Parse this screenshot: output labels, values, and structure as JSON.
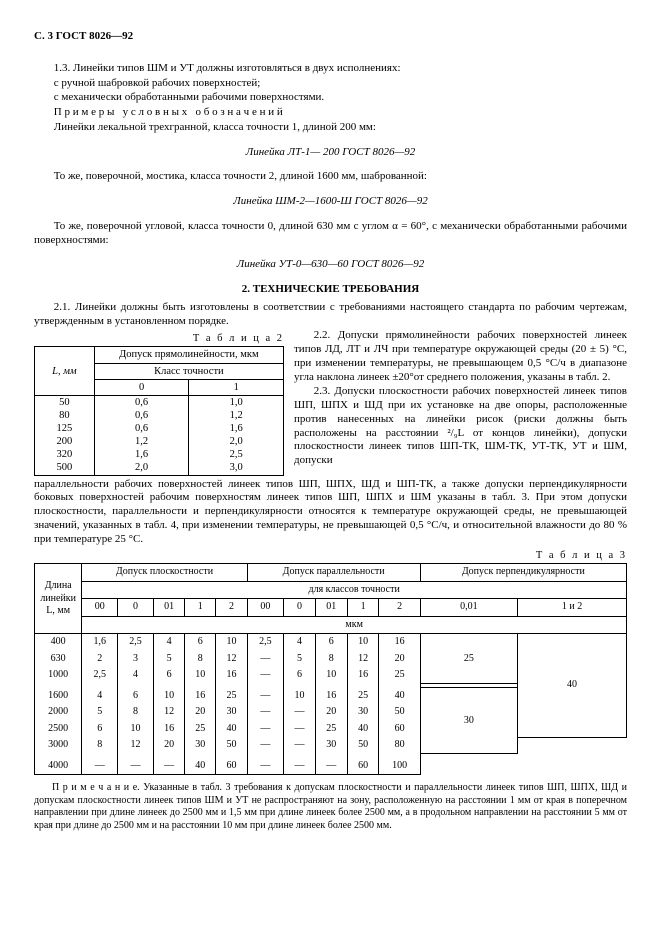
{
  "header": "С. 3  ГОСТ 8026—92",
  "p1": "1.3. Линейки типов ШМ и УТ должны изготовляться в двух исполнениях:",
  "p2": "с ручной шабровкой рабочих поверхностей;",
  "p3": "с механически обработанными рабочими поверхностями.",
  "p4a": "П р и м е р ы",
  "p4b": "у с л о в н ы х",
  "p4c": "о б о з н а ч е н и й",
  "p5": "Линейки лекальной трехгранной, класса точности 1, длиной 200 мм:",
  "f1": "Линейка ЛТ-1— 200 ГОСТ 8026—92",
  "p6": "То же, поверочной, мостика, класса точности 2, длиной 1600 мм, шаброванной:",
  "f2": "Линейка ШМ-2—1600-Ш ГОСТ 8026—92",
  "p7": "То же, поверочной угловой, класса точности 0, длиной 630 мм с углом α = 60°, с механически обработанными рабочими поверхностями:",
  "f3": "Линейка УТ-0—630—60 ГОСТ 8026—92",
  "sec2": "2.  ТЕХНИЧЕСКИЕ ТРЕБОВАНИЯ",
  "p21": "2.1. Линейки должны быть изготовлены в соответствии с требованиями настоящего стандарта по рабочим чертежам, утвержденным в установленном порядке.",
  "t2_label": "Т а б л и ц а  2",
  "t2_h1": "Допуск прямолинейности, мкм",
  "t2_h2": "Класс точности",
  "t2_L": "L, мм",
  "t2_rows": [
    {
      "L": "50",
      "c0": "0,6",
      "c1": "1,0"
    },
    {
      "L": "80",
      "c0": "0,6",
      "c1": "1,2"
    },
    {
      "L": "125",
      "c0": "0,6",
      "c1": "1,6"
    },
    {
      "L": "200",
      "c0": "1,2",
      "c1": "2,0"
    },
    {
      "L": "320",
      "c0": "1,6",
      "c1": "2,5"
    },
    {
      "L": "500",
      "c0": "2,0",
      "c1": "3,0"
    }
  ],
  "p22": "2.2. Допуски прямолинейности рабочих поверхностей линеек типов ЛД, ЛТ и ЛЧ при температуре окружающей среды (20 ± 5) °С, при изменении температуры, не превышающем 0,5 °С/ч в диапазоне угла наклона линеек ±20°от среднего положения, указаны в табл.  2.",
  "p23": "2.3. Допуски плоскостности рабочих поверхностей линеек типов ШП, ШПХ и ШД при их установке на две опоры, расположенные против нанесенных на линейки рисок (риски должны быть расположены на расстоянии ²/₉L от концов линейки), допуски плоскостности линеек типов ШП-ТК, ШМ-ТК, УТ-ТК, УТ и ШМ, допуски",
  "p23b": "параллельности рабочих поверхностей линеек типов ШП, ШПХ, ШД и ШП-ТК, а также допуски перпендикулярности боковых поверхностей рабочим поверхностям линеек типов ШП, ШПХ и ШМ указаны в табл. 3. При этом допуски плоскостности, параллельности и перпендикулярности относятся к температуре окружающей среды, не превышающей значений, указанных в табл.  4, при изменении температуры, не превышающей 0,5 °С/ч, и относительной влажности до 80 % при температуре 25 °С.",
  "t3_label": "Т а б л и ц а  3",
  "t3_hL": "Длина линейки L, мм",
  "t3_hflat": "Допуск плоскостности",
  "t3_hpar": "Допуск параллельности",
  "t3_hperp": "Допуск перпендикулярности",
  "t3_hfor": "для классов точности",
  "t3_mkm": "мкм",
  "t3_cols": [
    "00",
    "0",
    "01",
    "1",
    "2",
    "00",
    "0",
    "01",
    "1",
    "2",
    "0,01",
    "1 и 2"
  ],
  "t3_rows": [
    {
      "L": "400",
      "v": [
        "1,6",
        "2,5",
        "4",
        "6",
        "10",
        "2,5",
        "4",
        "6",
        "10",
        "16"
      ]
    },
    {
      "L": "630",
      "v": [
        "2",
        "3",
        "5",
        "8",
        "12",
        "—",
        "5",
        "8",
        "12",
        "20"
      ]
    },
    {
      "L": "1000",
      "v": [
        "2,5",
        "4",
        "6",
        "10",
        "16",
        "—",
        "6",
        "10",
        "16",
        "25"
      ]
    },
    {
      "L": "1600",
      "v": [
        "4",
        "6",
        "10",
        "16",
        "25",
        "—",
        "10",
        "16",
        "25",
        "40"
      ]
    },
    {
      "L": "2000",
      "v": [
        "5",
        "8",
        "12",
        "20",
        "30",
        "—",
        "—",
        "20",
        "30",
        "50"
      ]
    },
    {
      "L": "2500",
      "v": [
        "6",
        "10",
        "16",
        "25",
        "40",
        "—",
        "—",
        "25",
        "40",
        "60"
      ]
    },
    {
      "L": "3000",
      "v": [
        "8",
        "12",
        "20",
        "30",
        "50",
        "—",
        "—",
        "30",
        "50",
        "80"
      ]
    },
    {
      "L": "4000",
      "v": [
        "—",
        "—",
        "—",
        "40",
        "60",
        "—",
        "—",
        "—",
        "60",
        "100"
      ]
    }
  ],
  "t3_perp": [
    {
      "rows": 3,
      "c1": "25",
      "c2": ""
    },
    {
      "rows": 4,
      "c1": "30",
      "c2": "40"
    },
    {
      "rows": 1,
      "c1": "—",
      "c2": "—"
    }
  ],
  "note": "П р и м е ч а н и е.  Указанные в табл. 3 требования к допускам плоскостности и параллельности линеек типов ШП, ШПХ, ШД и допускам плоскостности линеек типов ШМ и УТ не распространяют на зону, расположенную на расстоянии 1 мм от края в поперечном направлении при длине линеек до 2500 мм и 1,5 мм при длине линеек более 2500 мм, а в продольном направлении на расстоянии 5 мм от края при длине до 2500 мм и на расстоянии 10 мм при длине линеек более 2500 мм."
}
